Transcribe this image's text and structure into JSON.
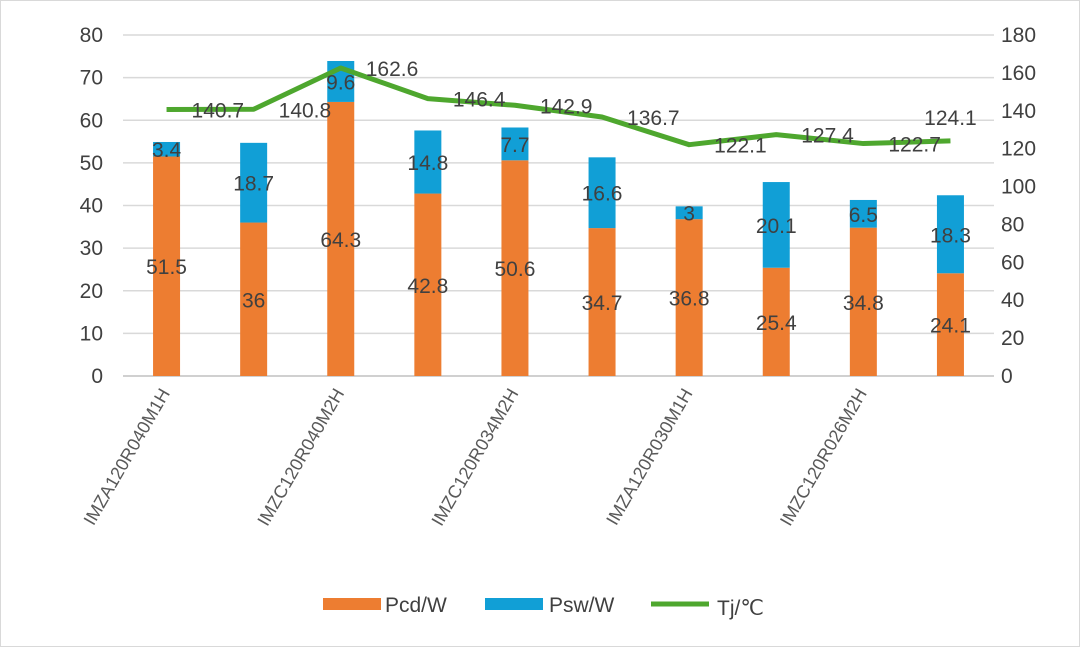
{
  "chart_data": {
    "type": "bar",
    "stacked": true,
    "categories": [
      "IMZA120R040M1H",
      "",
      "IMZC120R040M2H",
      "",
      "IMZC120R034M2H",
      "",
      "IMZA120R030M1H",
      "",
      "IMZC120R026M2H",
      ""
    ],
    "series": [
      {
        "name": "Pcd/W",
        "type": "bar",
        "axis": "left",
        "color": "#ED7D31",
        "values": [
          51.5,
          36,
          64.3,
          42.8,
          50.6,
          34.7,
          36.8,
          25.4,
          34.8,
          24.1
        ]
      },
      {
        "name": "Psw/W",
        "type": "bar",
        "axis": "left",
        "color": "#119FD6",
        "values": [
          3.4,
          18.7,
          9.6,
          14.8,
          7.7,
          16.6,
          3,
          20.1,
          6.5,
          18.3
        ]
      },
      {
        "name": "Tj/℃",
        "type": "line",
        "axis": "right",
        "color": "#4EA72E",
        "values": [
          140.7,
          140.8,
          162.6,
          146.4,
          142.9,
          136.7,
          122.1,
          127.4,
          122.7,
          124.1
        ]
      }
    ],
    "ylim": [
      0,
      80
    ],
    "yticks": [
      0,
      10,
      20,
      30,
      40,
      50,
      60,
      70,
      80
    ],
    "y2lim": [
      0,
      180
    ],
    "y2ticks": [
      0,
      20,
      40,
      60,
      80,
      100,
      120,
      140,
      160,
      180
    ],
    "grid": true,
    "legend": "bottom"
  }
}
